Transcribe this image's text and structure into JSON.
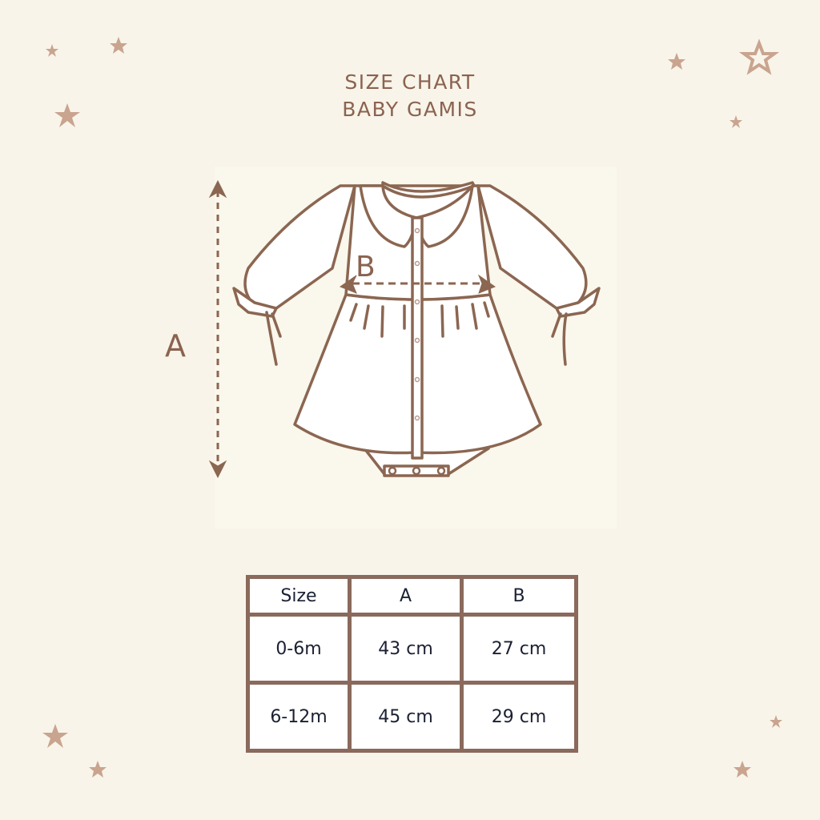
{
  "header": {
    "title_line1": "SIZE CHART",
    "title_line2": "BABY GAMIS"
  },
  "illustration": {
    "label_a": "A",
    "label_b": "B",
    "line_color": "#8b6651",
    "star_color": "#c9a48f"
  },
  "table": {
    "headers": [
      "Size",
      "A",
      "B"
    ],
    "rows": [
      [
        "0-6m",
        "43 cm",
        "27 cm"
      ],
      [
        "6-12m",
        "45 cm",
        "29 cm"
      ]
    ]
  }
}
